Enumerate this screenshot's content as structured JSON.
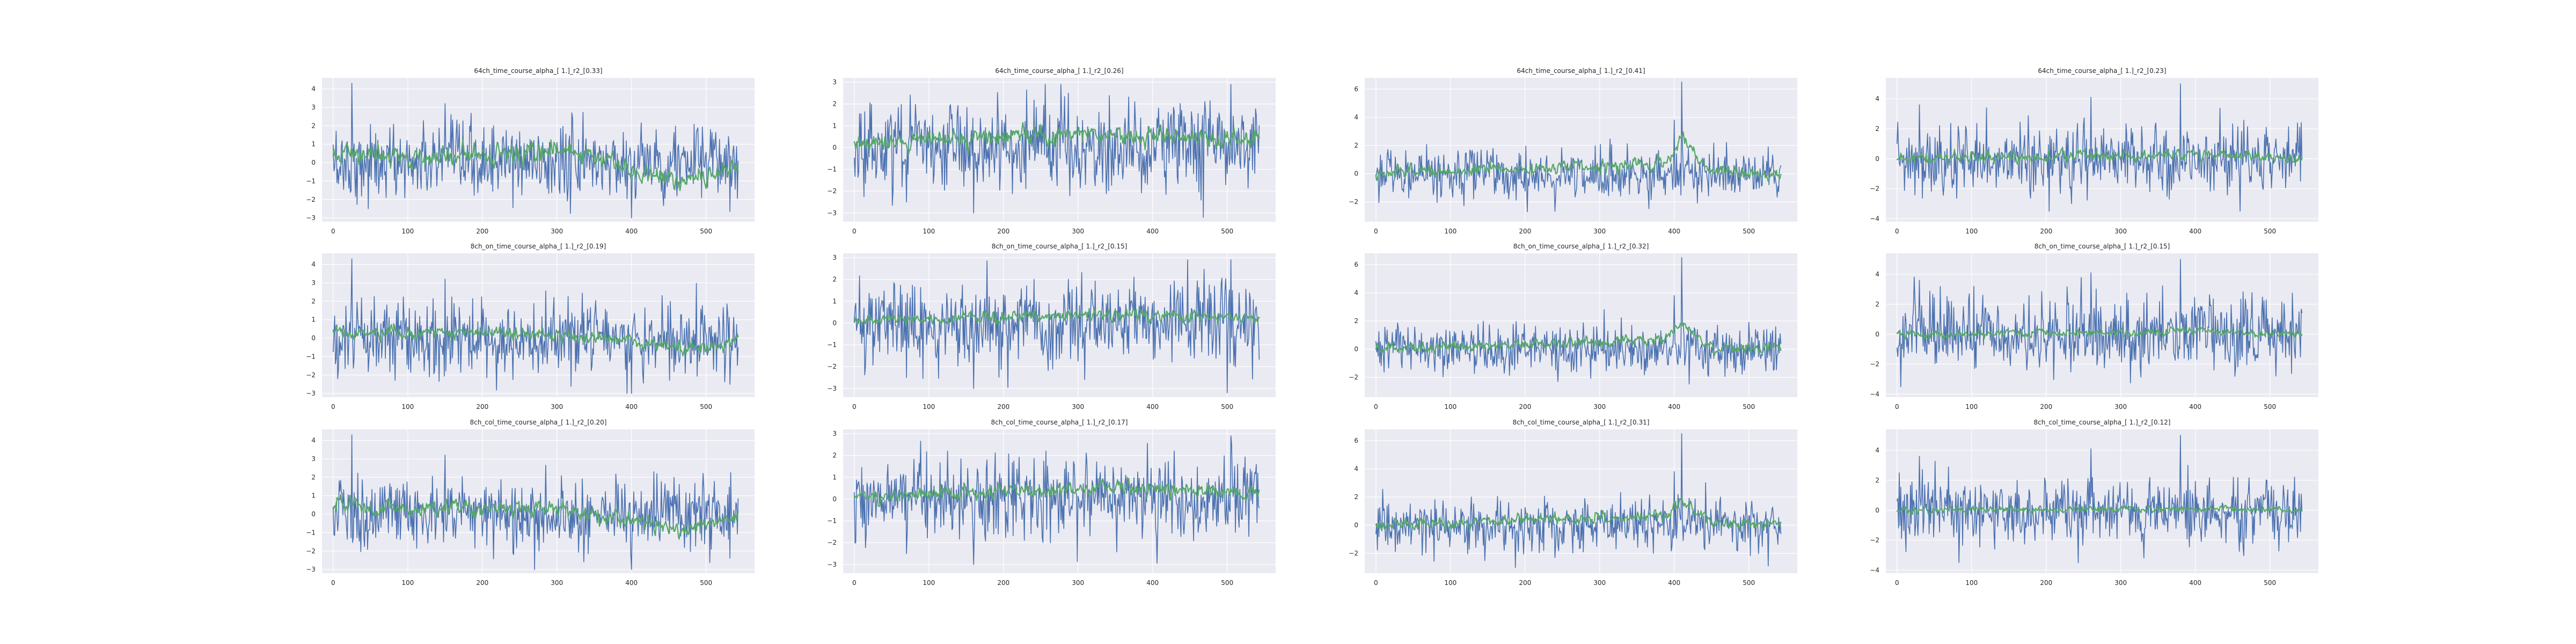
{
  "colors": {
    "background": "#ffffff",
    "axes_face": "#eaeaf2",
    "grid": "#ffffff",
    "text": "#262626",
    "series_1": "#4c72b0",
    "series_2": "#55a868"
  },
  "chart_data": [
    {
      "type": "line",
      "title": "64ch_time_course_alpha_[ 1.]_r2_[0.33]",
      "xlim": [
        -15,
        565
      ],
      "ylim": [
        -3.2,
        4.6
      ],
      "xticks": [
        0,
        100,
        200,
        300,
        400,
        500
      ],
      "yticks": [
        -3,
        -2,
        -1,
        0,
        1,
        2,
        3,
        4
      ],
      "x": {
        "start": 0,
        "end": 543,
        "count": 544
      },
      "series": [
        {
          "color": "#4c72b0",
          "approx_mean": 0.0,
          "approx_amplitude": 1.0,
          "observed_range": [
            -3.0,
            4.3
          ],
          "peaks": [
            [
              25,
              4.3
            ],
            [
              150,
              3.2
            ],
            [
              400,
              -3.0
            ]
          ]
        },
        {
          "color": "#55a868",
          "approx_mean": 0.3,
          "approx_amplitude": 0.5,
          "observed_range": [
            -1.8,
            2.6
          ],
          "trend_segments": [
            [
              0,
              0.5
            ],
            [
              130,
              0.2
            ],
            [
              230,
              0.6
            ],
            [
              350,
              0.5
            ],
            [
              400,
              -0.6
            ],
            [
              470,
              -1.0
            ],
            [
              543,
              -0.2
            ]
          ]
        }
      ]
    },
    {
      "type": "line",
      "title": "64ch_time_course_alpha_[ 1.]_r2_[0.26]",
      "xlim": [
        -15,
        565
      ],
      "ylim": [
        -3.4,
        3.2
      ],
      "xticks": [
        0,
        100,
        200,
        300,
        400,
        500
      ],
      "yticks": [
        -3,
        -2,
        -1,
        0,
        1,
        2,
        3
      ],
      "x": {
        "start": 0,
        "end": 543,
        "count": 544
      },
      "series": [
        {
          "color": "#4c72b0",
          "approx_mean": 0.0,
          "approx_amplitude": 1.0,
          "observed_range": [
            -3.2,
            2.9
          ],
          "peaks": [
            [
              70,
              -2.5
            ],
            [
              160,
              -3.0
            ],
            [
              505,
              2.9
            ]
          ]
        },
        {
          "color": "#55a868",
          "approx_mean": 0.4,
          "approx_amplitude": 0.4,
          "observed_range": [
            -0.6,
            2.0
          ],
          "trend_segments": [
            [
              0,
              0.1
            ],
            [
              150,
              0.4
            ],
            [
              300,
              0.6
            ],
            [
              450,
              0.4
            ],
            [
              543,
              0.3
            ]
          ]
        }
      ]
    },
    {
      "type": "line",
      "title": "64ch_time_course_alpha_[ 1.]_r2_[0.41]",
      "xlim": [
        -15,
        565
      ],
      "ylim": [
        -3.4,
        6.8
      ],
      "xticks": [
        0,
        100,
        200,
        300,
        400,
        500
      ],
      "yticks": [
        -2,
        0,
        2,
        4,
        6
      ],
      "x": {
        "start": 0,
        "end": 543,
        "count": 544
      },
      "series": [
        {
          "color": "#4c72b0",
          "approx_mean": 0.0,
          "approx_amplitude": 0.9,
          "observed_range": [
            -3.0,
            6.5
          ],
          "peaks": [
            [
              410,
              6.5
            ],
            [
              400,
              3.8
            ]
          ]
        },
        {
          "color": "#55a868",
          "approx_mean": 0.3,
          "approx_amplitude": 0.4,
          "observed_range": [
            -1.2,
            3.6
          ],
          "trend_segments": [
            [
              0,
              0.0
            ],
            [
              200,
              0.4
            ],
            [
              300,
              0.5
            ],
            [
              390,
              0.8
            ],
            [
              410,
              2.5
            ],
            [
              450,
              0.2
            ],
            [
              543,
              -0.1
            ]
          ]
        }
      ]
    },
    {
      "type": "line",
      "title": "64ch_time_course_alpha_[ 1.]_r2_[0.23]",
      "xlim": [
        -15,
        565
      ],
      "ylim": [
        -4.2,
        5.4
      ],
      "xticks": [
        0,
        100,
        200,
        300,
        400,
        500
      ],
      "yticks": [
        -4,
        -2,
        0,
        2,
        4
      ],
      "x": {
        "start": 0,
        "end": 543,
        "count": 544
      },
      "series": [
        {
          "color": "#4c72b0",
          "approx_mean": 0.0,
          "approx_amplitude": 1.2,
          "observed_range": [
            -3.5,
            5.0
          ],
          "peaks": [
            [
              380,
              5.0
            ],
            [
              260,
              4.1
            ],
            [
              30,
              3.6
            ]
          ]
        },
        {
          "color": "#55a868",
          "approx_mean": 0.1,
          "approx_amplitude": 0.35,
          "observed_range": [
            -1.0,
            2.0
          ],
          "trend_segments": [
            [
              0,
              0.0
            ],
            [
              270,
              0.2
            ],
            [
              400,
              0.3
            ],
            [
              543,
              0.0
            ]
          ]
        }
      ]
    },
    {
      "type": "line",
      "title": "8ch_on_time_course_alpha_[ 1.]_r2_[0.19]",
      "xlim": [
        -15,
        565
      ],
      "ylim": [
        -3.2,
        4.6
      ],
      "xticks": [
        0,
        100,
        200,
        300,
        400,
        500
      ],
      "yticks": [
        -3,
        -2,
        -1,
        0,
        1,
        2,
        3,
        4
      ],
      "x": {
        "start": 0,
        "end": 543,
        "count": 544
      },
      "series": [
        {
          "color": "#4c72b0",
          "approx_mean": 0.0,
          "approx_amplitude": 1.0,
          "observed_range": [
            -3.0,
            4.3
          ],
          "peaks": [
            [
              25,
              4.3
            ],
            [
              150,
              3.2
            ],
            [
              400,
              -3.0
            ]
          ]
        },
        {
          "color": "#55a868",
          "approx_mean": 0.2,
          "approx_amplitude": 0.35,
          "observed_range": [
            -1.5,
            1.6
          ],
          "trend_segments": [
            [
              0,
              0.3
            ],
            [
              150,
              0.3
            ],
            [
              300,
              0.2
            ],
            [
              400,
              -0.2
            ],
            [
              470,
              -0.6
            ],
            [
              543,
              -0.1
            ]
          ]
        }
      ]
    },
    {
      "type": "line",
      "title": "8ch_on_time_course_alpha_[ 1.]_r2_[0.15]",
      "xlim": [
        -15,
        565
      ],
      "ylim": [
        -3.4,
        3.2
      ],
      "xticks": [
        0,
        100,
        200,
        300,
        400,
        500
      ],
      "yticks": [
        -3,
        -2,
        -1,
        0,
        1,
        2,
        3
      ],
      "x": {
        "start": 0,
        "end": 543,
        "count": 544
      },
      "series": [
        {
          "color": "#4c72b0",
          "approx_mean": 0.0,
          "approx_amplitude": 1.0,
          "observed_range": [
            -3.2,
            2.9
          ],
          "peaks": [
            [
              70,
              -2.5
            ],
            [
              160,
              -3.0
            ],
            [
              505,
              2.9
            ]
          ]
        },
        {
          "color": "#55a868",
          "approx_mean": 0.3,
          "approx_amplitude": 0.25,
          "observed_range": [
            -0.4,
            1.0
          ],
          "trend_segments": [
            [
              0,
              0.1
            ],
            [
              200,
              0.3
            ],
            [
              350,
              0.4
            ],
            [
              543,
              0.3
            ]
          ]
        }
      ]
    },
    {
      "type": "line",
      "title": "8ch_on_time_course_alpha_[ 1.]_r2_[0.32]",
      "xlim": [
        -15,
        565
      ],
      "ylim": [
        -3.4,
        6.8
      ],
      "xticks": [
        0,
        100,
        200,
        300,
        400,
        500
      ],
      "yticks": [
        -2,
        0,
        2,
        4,
        6
      ],
      "x": {
        "start": 0,
        "end": 543,
        "count": 544
      },
      "series": [
        {
          "color": "#4c72b0",
          "approx_mean": 0.0,
          "approx_amplitude": 0.9,
          "observed_range": [
            -3.0,
            6.5
          ],
          "peaks": [
            [
              410,
              6.5
            ],
            [
              400,
              3.8
            ]
          ]
        },
        {
          "color": "#55a868",
          "approx_mean": 0.3,
          "approx_amplitude": 0.35,
          "observed_range": [
            -1.0,
            2.8
          ],
          "trend_segments": [
            [
              0,
              0.0
            ],
            [
              200,
              0.4
            ],
            [
              300,
              0.5
            ],
            [
              390,
              0.7
            ],
            [
              410,
              2.0
            ],
            [
              450,
              0.1
            ],
            [
              543,
              0.2
            ]
          ]
        }
      ]
    },
    {
      "type": "line",
      "title": "8ch_on_time_course_alpha_[ 1.]_r2_[0.15]",
      "xlim": [
        -15,
        565
      ],
      "ylim": [
        -4.2,
        5.4
      ],
      "xticks": [
        0,
        100,
        200,
        300,
        400,
        500
      ],
      "yticks": [
        -4,
        -2,
        0,
        2,
        4
      ],
      "x": {
        "start": 0,
        "end": 543,
        "count": 544
      },
      "series": [
        {
          "color": "#4c72b0",
          "approx_mean": 0.0,
          "approx_amplitude": 1.2,
          "observed_range": [
            -3.5,
            5.0
          ],
          "peaks": [
            [
              380,
              5.0
            ],
            [
              260,
              4.1
            ],
            [
              30,
              3.6
            ]
          ]
        },
        {
          "color": "#55a868",
          "approx_mean": 0.1,
          "approx_amplitude": 0.25,
          "observed_range": [
            -0.8,
            1.2
          ],
          "trend_segments": [
            [
              0,
              0.0
            ],
            [
              270,
              0.1
            ],
            [
              400,
              0.2
            ],
            [
              543,
              0.0
            ]
          ]
        }
      ]
    },
    {
      "type": "line",
      "title": "8ch_col_time_course_alpha_[ 1.]_r2_[0.20]",
      "xlim": [
        -15,
        565
      ],
      "ylim": [
        -3.2,
        4.6
      ],
      "xticks": [
        0,
        100,
        200,
        300,
        400,
        500
      ],
      "yticks": [
        -3,
        -2,
        -1,
        0,
        1,
        2,
        3,
        4
      ],
      "x": {
        "start": 0,
        "end": 543,
        "count": 544
      },
      "series": [
        {
          "color": "#4c72b0",
          "approx_mean": 0.0,
          "approx_amplitude": 1.0,
          "observed_range": [
            -3.0,
            4.3
          ],
          "peaks": [
            [
              25,
              4.3
            ],
            [
              150,
              3.2
            ],
            [
              400,
              -3.0
            ]
          ]
        },
        {
          "color": "#55a868",
          "approx_mean": 0.2,
          "approx_amplitude": 0.4,
          "observed_range": [
            -1.7,
            1.8
          ],
          "trend_segments": [
            [
              0,
              0.4
            ],
            [
              150,
              0.3
            ],
            [
              300,
              0.3
            ],
            [
              400,
              -0.3
            ],
            [
              470,
              -0.8
            ],
            [
              543,
              -0.2
            ]
          ]
        }
      ]
    },
    {
      "type": "line",
      "title": "8ch_col_time_course_alpha_[ 1.]_r2_[0.17]",
      "xlim": [
        -15,
        565
      ],
      "ylim": [
        -3.4,
        3.2
      ],
      "xticks": [
        0,
        100,
        200,
        300,
        400,
        500
      ],
      "yticks": [
        -3,
        -2,
        -1,
        0,
        1,
        2,
        3
      ],
      "x": {
        "start": 0,
        "end": 543,
        "count": 544
      },
      "series": [
        {
          "color": "#4c72b0",
          "approx_mean": 0.0,
          "approx_amplitude": 1.0,
          "observed_range": [
            -3.2,
            2.9
          ],
          "peaks": [
            [
              70,
              -2.5
            ],
            [
              160,
              -3.0
            ],
            [
              505,
              2.9
            ]
          ]
        },
        {
          "color": "#55a868",
          "approx_mean": 0.3,
          "approx_amplitude": 0.3,
          "observed_range": [
            -0.5,
            1.2
          ],
          "trend_segments": [
            [
              0,
              0.1
            ],
            [
              200,
              0.3
            ],
            [
              350,
              0.5
            ],
            [
              543,
              0.3
            ]
          ]
        }
      ]
    },
    {
      "type": "line",
      "title": "8ch_col_time_course_alpha_[ 1.]_r2_[0.31]",
      "xlim": [
        -15,
        565
      ],
      "ylim": [
        -3.4,
        6.8
      ],
      "xticks": [
        0,
        100,
        200,
        300,
        400,
        500
      ],
      "yticks": [
        -2,
        0,
        2,
        4,
        6
      ],
      "x": {
        "start": 0,
        "end": 543,
        "count": 544
      },
      "series": [
        {
          "color": "#4c72b0",
          "approx_mean": 0.0,
          "approx_amplitude": 0.9,
          "observed_range": [
            -3.0,
            6.5
          ],
          "peaks": [
            [
              410,
              6.5
            ],
            [
              400,
              3.8
            ]
          ]
        },
        {
          "color": "#55a868",
          "approx_mean": 0.3,
          "approx_amplitude": 0.35,
          "observed_range": [
            -1.0,
            2.6
          ],
          "trend_segments": [
            [
              0,
              0.0
            ],
            [
              200,
              0.4
            ],
            [
              300,
              0.5
            ],
            [
              390,
              0.7
            ],
            [
              410,
              1.8
            ],
            [
              450,
              0.1
            ],
            [
              543,
              0.2
            ]
          ]
        }
      ]
    },
    {
      "type": "line",
      "title": "8ch_col_time_course_alpha_[ 1.]_r2_[0.12]",
      "xlim": [
        -15,
        565
      ],
      "ylim": [
        -4.2,
        5.4
      ],
      "xticks": [
        0,
        100,
        200,
        300,
        400,
        500
      ],
      "yticks": [
        -4,
        -2,
        0,
        2,
        4
      ],
      "x": {
        "start": 0,
        "end": 543,
        "count": 544
      },
      "series": [
        {
          "color": "#4c72b0",
          "approx_mean": 0.0,
          "approx_amplitude": 1.2,
          "observed_range": [
            -3.5,
            5.0
          ],
          "peaks": [
            [
              380,
              5.0
            ],
            [
              260,
              4.1
            ],
            [
              30,
              3.6
            ]
          ]
        },
        {
          "color": "#55a868",
          "approx_mean": 0.1,
          "approx_amplitude": 0.2,
          "observed_range": [
            -0.7,
            1.0
          ],
          "trend_segments": [
            [
              0,
              0.0
            ],
            [
              270,
              0.1
            ],
            [
              400,
              0.1
            ],
            [
              543,
              0.0
            ]
          ]
        }
      ]
    }
  ]
}
